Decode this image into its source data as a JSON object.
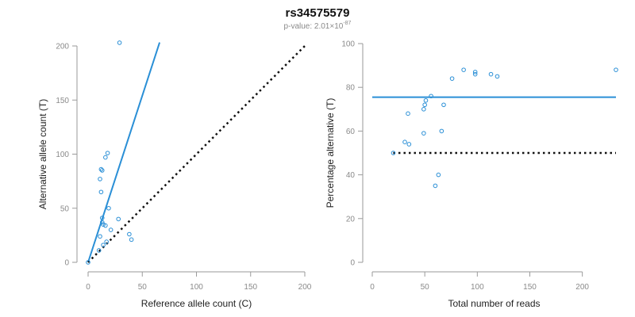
{
  "title": "rs34575579",
  "subtitle": {
    "prefix": "p-value: 2.01×10",
    "exponent": "-87"
  },
  "colors": {
    "accent": "#2a8fd6",
    "null_line": "#111111",
    "axis": "#9a9a9a"
  },
  "chart_data": [
    {
      "type": "scatter",
      "xlabel": "Reference allele count (C)",
      "ylabel": "Alternative allele count (T)",
      "xlim": [
        0,
        200
      ],
      "ylim": [
        0,
        200
      ],
      "xticks": [
        0,
        50,
        100,
        150,
        200
      ],
      "yticks": [
        0,
        50,
        100,
        150,
        200
      ],
      "grid": false,
      "points": [
        [
          29,
          203
        ],
        [
          18,
          101
        ],
        [
          16,
          97
        ],
        [
          12,
          86
        ],
        [
          13,
          85
        ],
        [
          11,
          77
        ],
        [
          12,
          65
        ],
        [
          19,
          50
        ],
        [
          13,
          41
        ],
        [
          28,
          40
        ],
        [
          13,
          37
        ],
        [
          14,
          35
        ],
        [
          16,
          34
        ],
        [
          21,
          30
        ],
        [
          38,
          26
        ],
        [
          11,
          24
        ],
        [
          40,
          21
        ],
        [
          17,
          19
        ],
        [
          14,
          16
        ],
        [
          10,
          11
        ],
        [
          0,
          0
        ]
      ],
      "lines": [
        {
          "kind": "fit",
          "slope": 3.08,
          "x": [
            0,
            66
          ]
        },
        {
          "kind": "null",
          "slope": 1,
          "x": [
            0,
            202
          ]
        }
      ]
    },
    {
      "type": "scatter",
      "xlabel": "Total number of reads",
      "ylabel": "Percentage alternative (T)",
      "xlim": [
        0,
        232
      ],
      "ylim": [
        0,
        100
      ],
      "xticks": [
        0,
        50,
        100,
        150,
        200
      ],
      "yticks": [
        0,
        20,
        40,
        60,
        80,
        100
      ],
      "grid": false,
      "points": [
        [
          20,
          50
        ],
        [
          31,
          55
        ],
        [
          34,
          68
        ],
        [
          35,
          54
        ],
        [
          49,
          59
        ],
        [
          49,
          70
        ],
        [
          50,
          72
        ],
        [
          51,
          74
        ],
        [
          56,
          76
        ],
        [
          60,
          35
        ],
        [
          63,
          40
        ],
        [
          66,
          60
        ],
        [
          68,
          72
        ],
        [
          76,
          84
        ],
        [
          87,
          88
        ],
        [
          98,
          86
        ],
        [
          98,
          87
        ],
        [
          113,
          86
        ],
        [
          119,
          85
        ],
        [
          232,
          88
        ]
      ],
      "lines": [
        {
          "kind": "fit",
          "y": 75.5,
          "x": [
            0,
            232
          ]
        },
        {
          "kind": "null",
          "y": 50,
          "x": [
            20,
            232
          ]
        }
      ]
    }
  ]
}
